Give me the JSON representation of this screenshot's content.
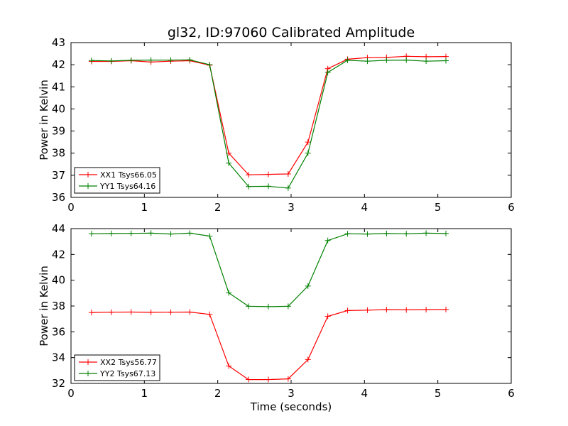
{
  "title": "gl32, ID:97060 Calibrated Amplitude",
  "xlabel": "Time (seconds)",
  "colors": {
    "xx": "#ff0000",
    "yy": "#008000",
    "axis": "#000000"
  },
  "chart_data": [
    {
      "type": "line",
      "ylabel": "Power in Kelvin",
      "xlim": [
        0,
        6
      ],
      "ylim": [
        36,
        43
      ],
      "xticks": [
        "0",
        "1",
        "2",
        "3",
        "4",
        "5",
        "6"
      ],
      "yticks": [
        "36",
        "37",
        "38",
        "39",
        "40",
        "41",
        "42",
        "43"
      ],
      "legend_position": "lower-left",
      "x": [
        0.28,
        0.55,
        0.82,
        1.09,
        1.36,
        1.62,
        1.89,
        2.15,
        2.42,
        2.69,
        2.96,
        3.23,
        3.5,
        3.77,
        4.04,
        4.3,
        4.57,
        4.84,
        5.11
      ],
      "series": [
        {
          "name": "XX1 Tsys66.05",
          "color": "#ff0000",
          "values": [
            42.15,
            42.15,
            42.18,
            42.12,
            42.16,
            42.18,
            41.98,
            38.0,
            37.02,
            37.04,
            37.06,
            38.5,
            41.82,
            42.25,
            42.32,
            42.33,
            42.38,
            42.36,
            42.37
          ]
        },
        {
          "name": "YY1 Tsys64.16",
          "color": "#008000",
          "values": [
            42.19,
            42.17,
            42.2,
            42.21,
            42.21,
            42.22,
            42.0,
            37.55,
            36.49,
            36.5,
            36.42,
            38.0,
            41.65,
            42.2,
            42.16,
            42.2,
            42.21,
            42.16,
            42.18
          ]
        }
      ]
    },
    {
      "type": "line",
      "ylabel": "Power in Kelvin",
      "xlim": [
        0,
        6
      ],
      "ylim": [
        32,
        44
      ],
      "xticks": [
        "0",
        "1",
        "2",
        "3",
        "4",
        "5",
        "6"
      ],
      "yticks": [
        "32",
        "34",
        "36",
        "38",
        "40",
        "42",
        "44"
      ],
      "legend_position": "lower-left",
      "x": [
        0.28,
        0.55,
        0.82,
        1.09,
        1.36,
        1.62,
        1.89,
        2.15,
        2.42,
        2.69,
        2.96,
        3.23,
        3.5,
        3.77,
        4.04,
        4.3,
        4.57,
        4.84,
        5.11
      ],
      "series": [
        {
          "name": "XX2 Tsys56.77",
          "color": "#ff0000",
          "values": [
            37.5,
            37.52,
            37.53,
            37.51,
            37.52,
            37.53,
            37.35,
            33.35,
            32.3,
            32.3,
            32.35,
            33.85,
            37.2,
            37.65,
            37.68,
            37.72,
            37.7,
            37.72,
            37.73
          ]
        },
        {
          "name": "YY2 Tsys67.13",
          "color": "#008000",
          "values": [
            43.6,
            43.62,
            43.63,
            43.65,
            43.58,
            43.65,
            43.42,
            39.02,
            37.98,
            37.95,
            37.98,
            39.55,
            43.08,
            43.6,
            43.58,
            43.62,
            43.6,
            43.65,
            43.62
          ]
        }
      ]
    }
  ]
}
